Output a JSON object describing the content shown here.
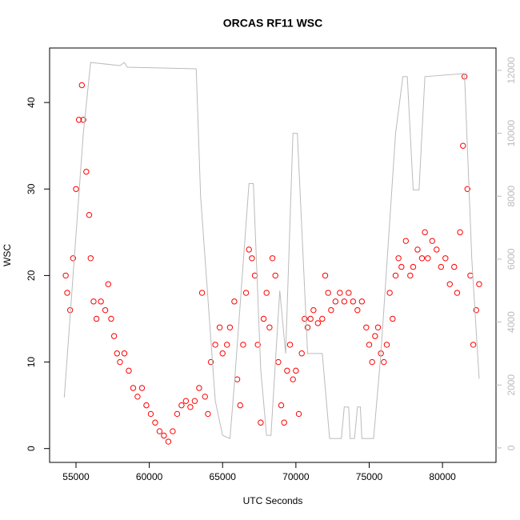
{
  "chart_data": {
    "type": "scatter",
    "title": "ORCAS RF11 WSC",
    "xlabel": "UTC Seconds",
    "ylabel": "WSC",
    "xlim": [
      53200,
      83650
    ],
    "xticks": [
      55000,
      60000,
      65000,
      70000,
      75000,
      80000
    ],
    "ylim": [
      -1.6,
      46.3
    ],
    "yticks": [
      0,
      10,
      20,
      30,
      40
    ],
    "y2lim": [
      -460,
      12710
    ],
    "y2ticks": [
      0,
      2000,
      4000,
      6000,
      8000,
      10000,
      12000
    ],
    "series": [
      {
        "type": "scatter",
        "color": "red",
        "x": [
          54300,
          54400,
          54600,
          54800,
          55000,
          55200,
          55400,
          55500,
          55700,
          55900,
          56000,
          56200,
          56400,
          56700,
          57000,
          57200,
          57400,
          57600,
          57800,
          58000,
          58300,
          58600,
          58900,
          59200,
          59500,
          59800,
          60100,
          60400,
          60700,
          61000,
          61300,
          61600,
          61900,
          62200,
          62500,
          62800,
          63100,
          63400,
          63600,
          63800,
          64000,
          64200,
          64500,
          64800,
          65000,
          65300,
          65500,
          65800,
          66000,
          66200,
          66400,
          66600,
          66800,
          67000,
          67200,
          67400,
          67600,
          67800,
          68000,
          68200,
          68400,
          68600,
          68800,
          69000,
          69200,
          69400,
          69600,
          69800,
          70000,
          70200,
          70400,
          70600,
          70800,
          71000,
          71200,
          71500,
          71800,
          72000,
          72200,
          72400,
          72700,
          73000,
          73300,
          73600,
          73900,
          74200,
          74500,
          74800,
          75000,
          75200,
          75400,
          75600,
          75800,
          76000,
          76200,
          76400,
          76600,
          76800,
          77000,
          77200,
          77500,
          77800,
          78000,
          78300,
          78600,
          78800,
          79000,
          79300,
          79600,
          79900,
          80200,
          80500,
          80800,
          81000,
          81200,
          81400,
          81500,
          81700,
          81900,
          82100,
          82300,
          82500
        ],
        "values": [
          20,
          18,
          16,
          22,
          30,
          38,
          42,
          38,
          32,
          27,
          22,
          17,
          15,
          17,
          16,
          19,
          15,
          13,
          11,
          10,
          11,
          9,
          7,
          6,
          7,
          5,
          4,
          3,
          2,
          1.5,
          0.8,
          2,
          4,
          5,
          5.5,
          4.8,
          5.5,
          7,
          18,
          6,
          4,
          10,
          12,
          14,
          11,
          12,
          14,
          17,
          8,
          5,
          12,
          18,
          23,
          22,
          20,
          12,
          3,
          15,
          18,
          14,
          22,
          20,
          10,
          5,
          3,
          9,
          12,
          8,
          9,
          4,
          11,
          15,
          14,
          15,
          16,
          14.5,
          15,
          20,
          18,
          16,
          17,
          18,
          17,
          18,
          17,
          16,
          17,
          14,
          12,
          10,
          13,
          14,
          11,
          10,
          12,
          18,
          15,
          20,
          22,
          21,
          24,
          20,
          21,
          23,
          22,
          25,
          22,
          24,
          23,
          21,
          22,
          19,
          21,
          18,
          25,
          35,
          43,
          30,
          20,
          12,
          16,
          19
        ]
      },
      {
        "type": "line",
        "color": "#bbbbbb",
        "axis": "y2",
        "x": [
          54200,
          55500,
          56000,
          58000,
          58300,
          58500,
          63200,
          63500,
          64500,
          65000,
          65500,
          65800,
          66800,
          67100,
          67600,
          68000,
          68300,
          68900,
          69300,
          69800,
          70100,
          70800,
          71200,
          71800,
          72300,
          73100,
          73300,
          73600,
          73700,
          74000,
          74200,
          74400,
          74500,
          75300,
          75800,
          76800,
          77300,
          77600,
          78000,
          78400,
          78800,
          81500,
          82000,
          82500
        ],
        "values": [
          1600,
          10000,
          12250,
          12150,
          12250,
          12100,
          12050,
          8000,
          1500,
          400,
          300,
          2000,
          8400,
          8400,
          2500,
          400,
          400,
          5000,
          3000,
          10000,
          10000,
          3000,
          3000,
          3000,
          300,
          300,
          1300,
          1300,
          300,
          300,
          1300,
          1300,
          300,
          300,
          3000,
          10000,
          11800,
          11800,
          8200,
          8200,
          11800,
          11900,
          6000,
          2200
        ]
      }
    ]
  }
}
